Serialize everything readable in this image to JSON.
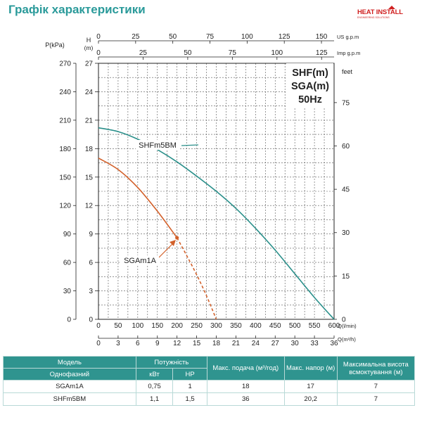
{
  "page_title": "Графік характеристики",
  "logo": {
    "text": "HEAT INSTALL",
    "subtext": "ENGINEERING SOLUTIONS",
    "color": "#d02020"
  },
  "colors": {
    "teal": "#2a8f8a",
    "orange": "#d2602a",
    "grid": "#555555",
    "header_bg": "#2f948f"
  },
  "chart_data": {
    "type": "line",
    "title": "SHF(m)\nSGA(m)\n50Hz",
    "title_lines": [
      "SHF(m)",
      "SGA(m)",
      "50Hz"
    ],
    "axes": {
      "q_lmin": {
        "label": "Q(l/min)",
        "ticks": [
          "0",
          "50",
          "100",
          "150",
          "200",
          "250",
          "300",
          "350",
          "400",
          "450",
          "500",
          "550",
          "600"
        ],
        "range": [
          0,
          600
        ]
      },
      "q_m3h": {
        "label": "Q(m³/h)",
        "ticks": [
          "0",
          "3",
          "6",
          "9",
          "12",
          "15",
          "18",
          "21",
          "24",
          "27",
          "30",
          "33",
          "36"
        ],
        "range": [
          0,
          36
        ]
      },
      "us_gpm": {
        "label": "US g.p.m",
        "ticks": [
          "0",
          "25",
          "50",
          "75",
          "100",
          "125",
          "150"
        ],
        "range": [
          0,
          158.5
        ]
      },
      "imp_gpm": {
        "label": "Imp g.p.m",
        "ticks": [
          "0",
          "25",
          "50",
          "75",
          "100",
          "125"
        ],
        "range": [
          0,
          132
        ]
      },
      "h_m": {
        "label": "H\n(m)",
        "label_lines": [
          "H",
          "(m)"
        ],
        "ticks": [
          "0",
          "3",
          "6",
          "9",
          "12",
          "15",
          "18",
          "21",
          "24",
          "27"
        ],
        "range": [
          0,
          27
        ]
      },
      "p_kpa": {
        "label": "P(kPa)",
        "ticks": [
          "0",
          "30",
          "60",
          "90",
          "120",
          "150",
          "180",
          "210",
          "240",
          "270"
        ],
        "range": [
          0,
          270
        ]
      },
      "feet": {
        "label": "feet",
        "ticks": [
          "0",
          "15",
          "30",
          "45",
          "60",
          "75"
        ],
        "range": [
          0,
          88.6
        ]
      }
    },
    "grid": true,
    "series": [
      {
        "name": "SHFm5BM",
        "color": "#2a8f8a",
        "style": "solid",
        "x": [
          0,
          50,
          100,
          150,
          200,
          250,
          300,
          350,
          400,
          450,
          500,
          550,
          600
        ],
        "y": [
          20.2,
          19.8,
          19.0,
          17.9,
          16.6,
          15.1,
          13.5,
          11.7,
          9.6,
          7.3,
          4.8,
          2.3,
          0
        ]
      },
      {
        "name": "SGAm1A",
        "color": "#d2602a",
        "style": "solid",
        "x": [
          0,
          50,
          100,
          150,
          200
        ],
        "y": [
          17.0,
          15.8,
          13.9,
          11.4,
          8.6
        ]
      },
      {
        "name": "SGAm1A",
        "color": "#d2602a",
        "style": "dashed",
        "x": [
          200,
          225,
          250,
          275,
          300
        ],
        "y": [
          8.6,
          6.7,
          4.7,
          2.5,
          0
        ]
      }
    ],
    "annotations": [
      {
        "text": "SHFm5BM",
        "series": "SHFm5BM"
      },
      {
        "text": "SGAm1A",
        "series": "SGAm1A"
      }
    ]
  },
  "table": {
    "headers": {
      "model": "Модель",
      "power": "Потужність",
      "max_flow": "Макс. подача (м³/год)",
      "max_head": "Макс. напор (м)",
      "max_suction": "Максимальна висота всмоктування (м)",
      "single_phase": "Однофазний",
      "kw": "кВт",
      "hp": "HP"
    },
    "rows": [
      {
        "model": "SGAm1A",
        "kw": "0,75",
        "hp": "1",
        "flow": "18",
        "head": "17",
        "suction": "7"
      },
      {
        "model": "SHFm5BM",
        "kw": "1,1",
        "hp": "1,5",
        "flow": "36",
        "head": "20,2",
        "suction": "7"
      }
    ]
  }
}
